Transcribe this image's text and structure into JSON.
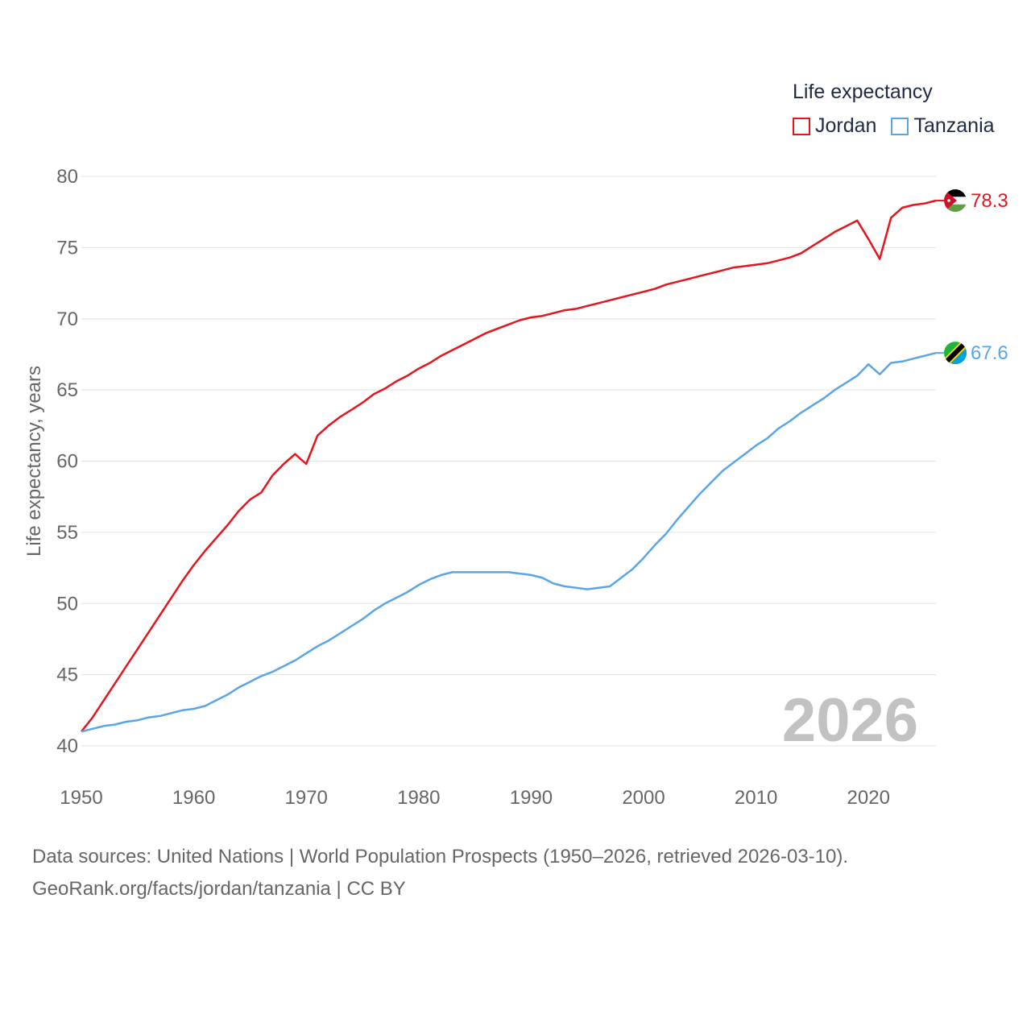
{
  "legend": {
    "title": "Life expectancy",
    "items": [
      {
        "label": "Jordan",
        "color": "#e8141c"
      },
      {
        "label": "Tanzania",
        "color": "#5aa5e6"
      }
    ]
  },
  "footer": {
    "line1": "Data sources: United Nations | World Population Prospects (1950–2026, retrieved 2026-03-10).",
    "line2": "GeoRank.org/facts/jordan/tanzania | CC BY"
  },
  "chart_data": {
    "type": "line",
    "title": "Life expectancy",
    "xlabel": "",
    "ylabel": "Life expectancy, years",
    "xlim": [
      1950,
      2026
    ],
    "ylim": [
      40,
      80
    ],
    "xticks": [
      1950,
      1960,
      1970,
      1980,
      1990,
      2000,
      2010,
      2020
    ],
    "yticks": [
      40,
      45,
      50,
      55,
      60,
      65,
      70,
      75,
      80
    ],
    "grid": true,
    "year_watermark": "2026",
    "series": [
      {
        "name": "Jordan",
        "color": "#e8141c",
        "flag_icon": "jordan-flag-icon",
        "end_label": "78.3",
        "points": [
          [
            1950,
            41.0
          ],
          [
            1951,
            42.0
          ],
          [
            1952,
            43.2
          ],
          [
            1953,
            44.4
          ],
          [
            1954,
            45.6
          ],
          [
            1955,
            46.8
          ],
          [
            1956,
            48.0
          ],
          [
            1957,
            49.2
          ],
          [
            1958,
            50.4
          ],
          [
            1959,
            51.6
          ],
          [
            1960,
            52.7
          ],
          [
            1961,
            53.7
          ],
          [
            1962,
            54.6
          ],
          [
            1963,
            55.5
          ],
          [
            1964,
            56.5
          ],
          [
            1965,
            57.3
          ],
          [
            1966,
            57.8
          ],
          [
            1967,
            59.0
          ],
          [
            1968,
            59.8
          ],
          [
            1969,
            60.5
          ],
          [
            1970,
            59.8
          ],
          [
            1971,
            61.8
          ],
          [
            1972,
            62.5
          ],
          [
            1973,
            63.1
          ],
          [
            1974,
            63.6
          ],
          [
            1975,
            64.1
          ],
          [
            1976,
            64.7
          ],
          [
            1977,
            65.1
          ],
          [
            1978,
            65.6
          ],
          [
            1979,
            66.0
          ],
          [
            1980,
            66.5
          ],
          [
            1981,
            66.9
          ],
          [
            1982,
            67.4
          ],
          [
            1983,
            67.8
          ],
          [
            1984,
            68.2
          ],
          [
            1985,
            68.6
          ],
          [
            1986,
            69.0
          ],
          [
            1987,
            69.3
          ],
          [
            1988,
            69.6
          ],
          [
            1989,
            69.9
          ],
          [
            1990,
            70.1
          ],
          [
            1991,
            70.2
          ],
          [
            1992,
            70.4
          ],
          [
            1993,
            70.6
          ],
          [
            1994,
            70.7
          ],
          [
            1995,
            70.9
          ],
          [
            1996,
            71.1
          ],
          [
            1997,
            71.3
          ],
          [
            1998,
            71.5
          ],
          [
            1999,
            71.7
          ],
          [
            2000,
            71.9
          ],
          [
            2001,
            72.1
          ],
          [
            2002,
            72.4
          ],
          [
            2003,
            72.6
          ],
          [
            2004,
            72.8
          ],
          [
            2005,
            73.0
          ],
          [
            2006,
            73.2
          ],
          [
            2007,
            73.4
          ],
          [
            2008,
            73.6
          ],
          [
            2009,
            73.7
          ],
          [
            2010,
            73.8
          ],
          [
            2011,
            73.9
          ],
          [
            2012,
            74.1
          ],
          [
            2013,
            74.3
          ],
          [
            2014,
            74.6
          ],
          [
            2015,
            75.1
          ],
          [
            2016,
            75.6
          ],
          [
            2017,
            76.1
          ],
          [
            2018,
            76.5
          ],
          [
            2019,
            76.9
          ],
          [
            2020,
            75.6
          ],
          [
            2021,
            74.2
          ],
          [
            2022,
            77.1
          ],
          [
            2023,
            77.8
          ],
          [
            2024,
            78.0
          ],
          [
            2025,
            78.1
          ],
          [
            2026,
            78.3
          ]
        ]
      },
      {
        "name": "Tanzania",
        "color": "#5aa5e6",
        "flag_icon": "tanzania-flag-icon",
        "end_label": "67.6",
        "points": [
          [
            1950,
            41.0
          ],
          [
            1951,
            41.2
          ],
          [
            1952,
            41.4
          ],
          [
            1953,
            41.5
          ],
          [
            1954,
            41.7
          ],
          [
            1955,
            41.8
          ],
          [
            1956,
            42.0
          ],
          [
            1957,
            42.1
          ],
          [
            1958,
            42.3
          ],
          [
            1959,
            42.5
          ],
          [
            1960,
            42.6
          ],
          [
            1961,
            42.8
          ],
          [
            1962,
            43.2
          ],
          [
            1963,
            43.6
          ],
          [
            1964,
            44.1
          ],
          [
            1965,
            44.5
          ],
          [
            1966,
            44.9
          ],
          [
            1967,
            45.2
          ],
          [
            1968,
            45.6
          ],
          [
            1969,
            46.0
          ],
          [
            1970,
            46.5
          ],
          [
            1971,
            47.0
          ],
          [
            1972,
            47.4
          ],
          [
            1973,
            47.9
          ],
          [
            1974,
            48.4
          ],
          [
            1975,
            48.9
          ],
          [
            1976,
            49.5
          ],
          [
            1977,
            50.0
          ],
          [
            1978,
            50.4
          ],
          [
            1979,
            50.8
          ],
          [
            1980,
            51.3
          ],
          [
            1981,
            51.7
          ],
          [
            1982,
            52.0
          ],
          [
            1983,
            52.2
          ],
          [
            1984,
            52.2
          ],
          [
            1985,
            52.2
          ],
          [
            1986,
            52.2
          ],
          [
            1987,
            52.2
          ],
          [
            1988,
            52.2
          ],
          [
            1989,
            52.1
          ],
          [
            1990,
            52.0
          ],
          [
            1991,
            51.8
          ],
          [
            1992,
            51.4
          ],
          [
            1993,
            51.2
          ],
          [
            1994,
            51.1
          ],
          [
            1995,
            51.0
          ],
          [
            1996,
            51.1
          ],
          [
            1997,
            51.2
          ],
          [
            1998,
            51.8
          ],
          [
            1999,
            52.4
          ],
          [
            2000,
            53.2
          ],
          [
            2001,
            54.1
          ],
          [
            2002,
            54.9
          ],
          [
            2003,
            55.9
          ],
          [
            2004,
            56.8
          ],
          [
            2005,
            57.7
          ],
          [
            2006,
            58.5
          ],
          [
            2007,
            59.3
          ],
          [
            2008,
            59.9
          ],
          [
            2009,
            60.5
          ],
          [
            2010,
            61.1
          ],
          [
            2011,
            61.6
          ],
          [
            2012,
            62.3
          ],
          [
            2013,
            62.8
          ],
          [
            2014,
            63.4
          ],
          [
            2015,
            63.9
          ],
          [
            2016,
            64.4
          ],
          [
            2017,
            65.0
          ],
          [
            2018,
            65.5
          ],
          [
            2019,
            66.0
          ],
          [
            2020,
            66.8
          ],
          [
            2021,
            66.1
          ],
          [
            2022,
            66.9
          ],
          [
            2023,
            67.0
          ],
          [
            2024,
            67.2
          ],
          [
            2025,
            67.4
          ],
          [
            2026,
            67.6
          ]
        ]
      }
    ]
  }
}
